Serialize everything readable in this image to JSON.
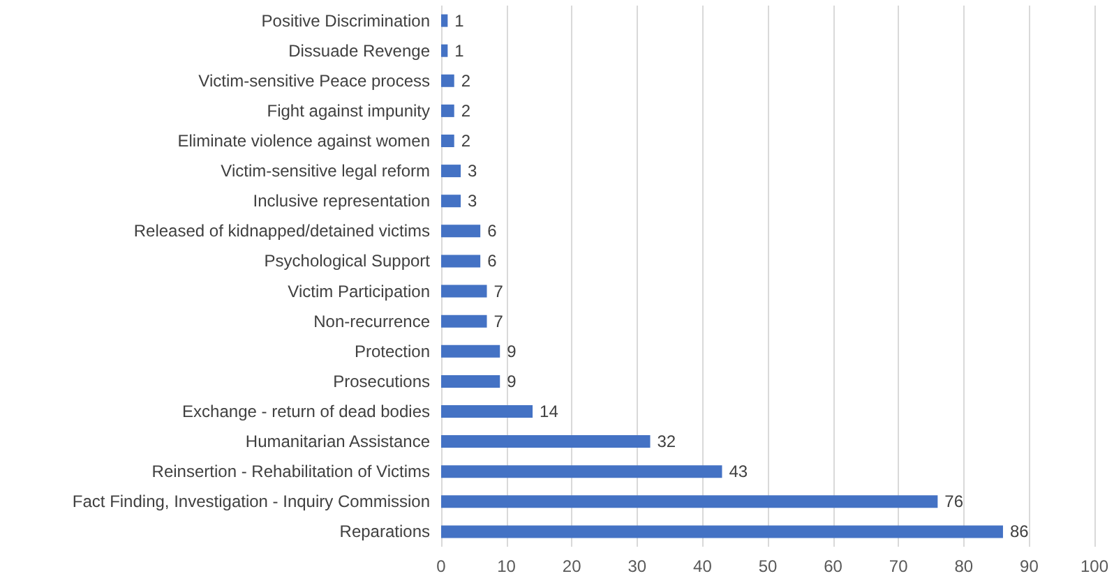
{
  "chart_data": {
    "type": "bar",
    "orientation": "horizontal",
    "categories": [
      "Positive Discrimination",
      "Dissuade Revenge",
      "Victim-sensitive Peace process",
      "Fight against impunity",
      "Eliminate violence against women",
      "Victim-sensitive legal reform",
      "Inclusive representation",
      "Released of kidnapped/detained victims",
      "Psychological Support",
      "Victim Participation",
      "Non-recurrence",
      "Protection",
      "Prosecutions",
      "Exchange - return of dead bodies",
      "Humanitarian Assistance",
      "Reinsertion - Rehabilitation of Victims",
      "Fact Finding, Investigation - Inquiry Commission",
      "Reparations"
    ],
    "values": [
      1,
      1,
      2,
      2,
      2,
      3,
      3,
      6,
      6,
      7,
      7,
      9,
      9,
      14,
      32,
      43,
      76,
      86
    ],
    "color": "#4472c4",
    "xlim": [
      0,
      100
    ],
    "xticks": [
      0,
      10,
      20,
      30,
      40,
      50,
      60,
      70,
      80,
      90,
      100
    ],
    "grid": "x",
    "data_labels": true
  }
}
